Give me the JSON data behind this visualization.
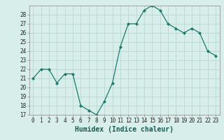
{
  "x": [
    0,
    1,
    2,
    3,
    4,
    5,
    6,
    7,
    8,
    9,
    10,
    11,
    12,
    13,
    14,
    15,
    16,
    17,
    18,
    19,
    20,
    21,
    22,
    23
  ],
  "y": [
    21,
    22,
    22,
    20.5,
    21.5,
    21.5,
    18,
    17.5,
    17,
    18.5,
    20.5,
    24.5,
    27,
    27,
    28.5,
    29,
    28.5,
    27,
    26.5,
    26,
    26.5,
    26,
    24,
    23.5
  ],
  "line_color": "#1a7a6e",
  "marker": "D",
  "marker_size": 2,
  "bg_color": "#d8eeea",
  "grid_color": "#b8d8d0",
  "xlabel": "Humidex (Indice chaleur)",
  "ylim": [
    17,
    29
  ],
  "xlim": [
    -0.5,
    23.5
  ],
  "yticks": [
    17,
    18,
    19,
    20,
    21,
    22,
    23,
    24,
    25,
    26,
    27,
    28
  ],
  "xticks": [
    0,
    1,
    2,
    3,
    4,
    5,
    6,
    7,
    8,
    9,
    10,
    11,
    12,
    13,
    14,
    15,
    16,
    17,
    18,
    19,
    20,
    21,
    22,
    23
  ],
  "tick_fontsize": 5.5,
  "label_fontsize": 7.0
}
